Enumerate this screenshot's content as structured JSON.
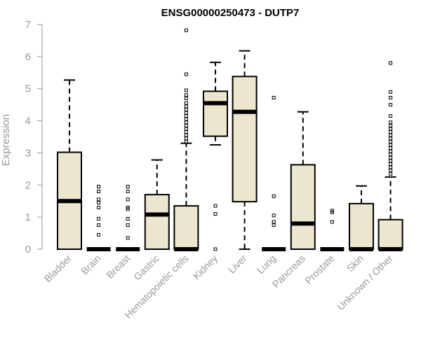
{
  "chart_data": {
    "type": "boxplot",
    "title": "ENSG00000250473 - DUTP7",
    "ylabel": "Expression",
    "xlabel": "",
    "ylim": [
      0,
      7
    ],
    "yticks": [
      0,
      1,
      2,
      3,
      4,
      5,
      6,
      7
    ],
    "categories": [
      "Bladder",
      "Brain",
      "Breast",
      "Gastric",
      "Hematopoietic cells",
      "Kidney",
      "Liver",
      "Lung",
      "Pancreas",
      "Prostate",
      "Skin",
      "Unknown / Other"
    ],
    "box_fill": "#ede6ce",
    "axis_color": "#999999",
    "boxes": [
      {
        "name": "Bladder",
        "min": 0,
        "q1": 0,
        "median": 1.5,
        "q3": 3.02,
        "max": 5.27,
        "outliers": []
      },
      {
        "name": "Brain",
        "min": 0,
        "q1": 0,
        "median": 0,
        "q3": 0,
        "max": 0,
        "outliers": [
          0.45,
          0.75,
          0.95,
          1.3,
          1.45,
          1.55,
          1.8,
          1.95
        ]
      },
      {
        "name": "Breast",
        "min": 0,
        "q1": 0,
        "median": 0,
        "q3": 0,
        "max": 0,
        "outliers": [
          0.35,
          0.75,
          0.95,
          1.25,
          1.3,
          1.55,
          1.8,
          1.95
        ]
      },
      {
        "name": "Gastric",
        "min": 0,
        "q1": 0,
        "median": 1.08,
        "q3": 1.7,
        "max": 2.78,
        "outliers": []
      },
      {
        "name": "Hematopoietic cells",
        "min": 0,
        "q1": 0,
        "median": 0,
        "q3": 1.35,
        "max": 3.3,
        "outliers": [
          3.35,
          3.45,
          3.55,
          3.65,
          3.75,
          3.85,
          3.95,
          4.05,
          4.15,
          4.25,
          4.35,
          4.45,
          4.55,
          4.7,
          4.8,
          4.95,
          5.45,
          6.82
        ]
      },
      {
        "name": "Kidney",
        "min": 3.25,
        "q1": 3.52,
        "median": 4.55,
        "q3": 4.92,
        "max": 5.82,
        "outliers": [
          0,
          1.1,
          1.35
        ]
      },
      {
        "name": "Liver",
        "min": 0,
        "q1": 1.48,
        "median": 4.28,
        "q3": 5.38,
        "max": 6.18,
        "outliers": []
      },
      {
        "name": "Lung",
        "min": 0,
        "q1": 0,
        "median": 0,
        "q3": 0,
        "max": 0,
        "outliers": [
          0.75,
          0.85,
          1.05,
          1.65,
          4.72
        ]
      },
      {
        "name": "Pancreas",
        "min": 0,
        "q1": 0,
        "median": 0.8,
        "q3": 2.63,
        "max": 4.28,
        "outliers": []
      },
      {
        "name": "Prostate",
        "min": 0,
        "q1": 0,
        "median": 0,
        "q3": 0,
        "max": 0,
        "outliers": [
          0.85,
          1.15,
          1.2
        ]
      },
      {
        "name": "Skin",
        "min": 0,
        "q1": 0,
        "median": 0,
        "q3": 1.42,
        "max": 1.97,
        "outliers": []
      },
      {
        "name": "Unknown / Other",
        "min": 0,
        "q1": 0,
        "median": 0,
        "q3": 0.92,
        "max": 2.25,
        "outliers": [
          2.35,
          2.45,
          2.55,
          2.65,
          2.75,
          2.85,
          2.95,
          3.05,
          3.15,
          3.25,
          3.35,
          3.45,
          3.55,
          3.65,
          3.75,
          3.85,
          3.95,
          4.15,
          4.5,
          4.72,
          4.9,
          5.8
        ]
      }
    ]
  }
}
